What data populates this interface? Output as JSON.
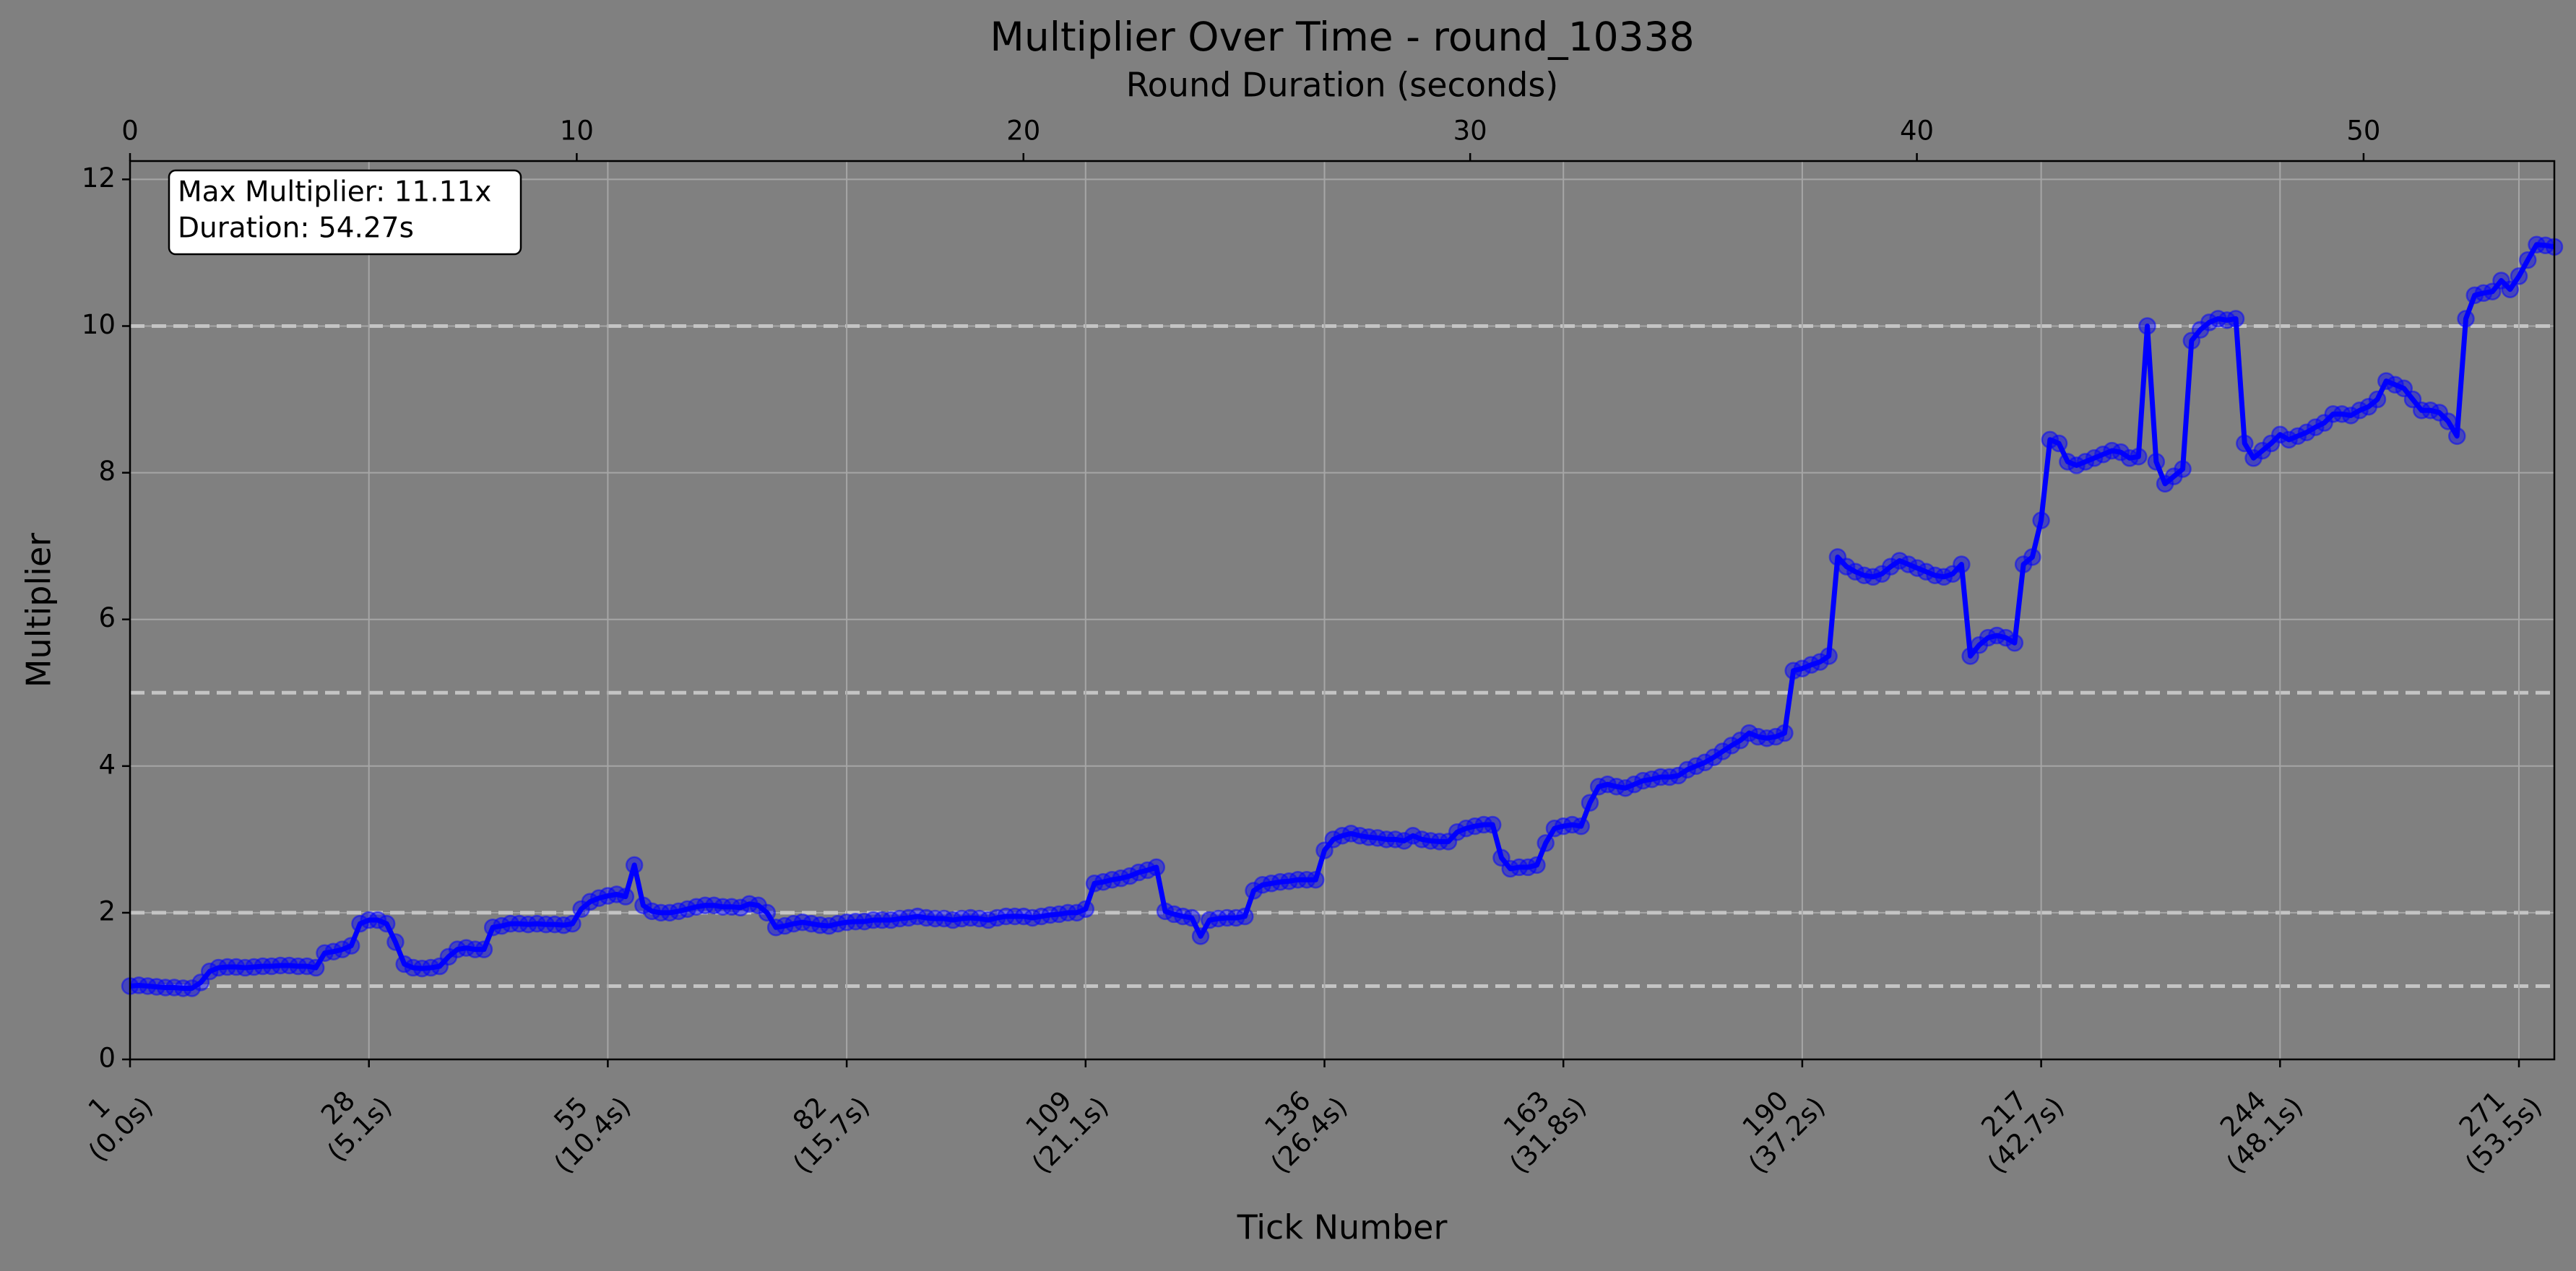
{
  "chart_data": {
    "type": "line",
    "title": "Multiplier Over Time - round_10338",
    "x_label": "Tick Number",
    "y_label": "Multiplier",
    "x2_label": "Round Duration (seconds)",
    "annotation": [
      "Max Multiplier: 11.11x",
      "Duration: 54.27s"
    ],
    "xlim": [
      1,
      275
    ],
    "ylim": [
      0,
      12.25
    ],
    "x2lim": [
      0,
      54.27
    ],
    "xticks": [
      {
        "value": 1,
        "label": [
          "1",
          "(0.0s)"
        ]
      },
      {
        "value": 28,
        "label": [
          "28",
          "(5.1s)"
        ]
      },
      {
        "value": 55,
        "label": [
          "55",
          "(10.4s)"
        ]
      },
      {
        "value": 82,
        "label": [
          "82",
          "(15.7s)"
        ]
      },
      {
        "value": 109,
        "label": [
          "109",
          "(21.1s)"
        ]
      },
      {
        "value": 136,
        "label": [
          "136",
          "(26.4s)"
        ]
      },
      {
        "value": 163,
        "label": [
          "163",
          "(31.8s)"
        ]
      },
      {
        "value": 190,
        "label": [
          "190",
          "(37.2s)"
        ]
      },
      {
        "value": 217,
        "label": [
          "217",
          "(42.7s)"
        ]
      },
      {
        "value": 244,
        "label": [
          "244",
          "(48.1s)"
        ]
      },
      {
        "value": 271,
        "label": [
          "271",
          "(53.5s)"
        ]
      }
    ],
    "yticks": [
      0,
      2,
      4,
      6,
      8,
      10,
      12
    ],
    "x2ticks": [
      0,
      10,
      20,
      30,
      40,
      50
    ],
    "grid": true,
    "reference_lines": [
      1,
      2,
      5,
      10
    ],
    "series": [
      {
        "name": "Multiplier",
        "color": "#0000ff",
        "x": [
          1,
          2,
          3,
          4,
          5,
          6,
          7,
          8,
          9,
          10,
          11,
          12,
          13,
          14,
          15,
          16,
          17,
          18,
          19,
          20,
          21,
          22,
          23,
          24,
          25,
          26,
          27,
          28,
          29,
          30,
          31,
          32,
          33,
          34,
          35,
          36,
          37,
          38,
          39,
          40,
          41,
          42,
          43,
          44,
          45,
          46,
          47,
          48,
          49,
          50,
          51,
          52,
          53,
          54,
          55,
          56,
          57,
          58,
          59,
          60,
          61,
          62,
          63,
          64,
          65,
          66,
          67,
          68,
          69,
          70,
          71,
          72,
          73,
          74,
          75,
          76,
          77,
          78,
          79,
          80,
          81,
          82,
          83,
          84,
          85,
          86,
          87,
          88,
          89,
          90,
          91,
          92,
          93,
          94,
          95,
          96,
          97,
          98,
          99,
          100,
          101,
          102,
          103,
          104,
          105,
          106,
          107,
          108,
          109,
          110,
          111,
          112,
          113,
          114,
          115,
          116,
          117,
          118,
          119,
          120,
          121,
          122,
          123,
          124,
          125,
          126,
          127,
          128,
          129,
          130,
          131,
          132,
          133,
          134,
          135,
          136,
          137,
          138,
          139,
          140,
          141,
          142,
          143,
          144,
          145,
          146,
          147,
          148,
          149,
          150,
          151,
          152,
          153,
          154,
          155,
          156,
          157,
          158,
          159,
          160,
          161,
          162,
          163,
          164,
          165,
          166,
          167,
          168,
          169,
          170,
          171,
          172,
          173,
          174,
          175,
          176,
          177,
          178,
          179,
          180,
          181,
          182,
          183,
          184,
          185,
          186,
          187,
          188,
          189,
          190,
          191,
          192,
          193,
          194,
          195,
          196,
          197,
          198,
          199,
          200,
          201,
          202,
          203,
          204,
          205,
          206,
          207,
          208,
          209,
          210,
          211,
          212,
          213,
          214,
          215,
          216,
          217,
          218,
          219,
          220,
          221,
          222,
          223,
          224,
          225,
          226,
          227,
          228,
          229,
          230,
          231,
          232,
          233,
          234,
          235,
          236,
          237,
          238,
          239,
          240,
          241,
          242,
          243,
          244,
          245,
          246,
          247,
          248,
          249,
          250,
          251,
          252,
          253,
          254,
          255,
          256,
          257,
          258,
          259,
          260,
          261,
          262,
          263,
          264,
          265,
          266,
          267,
          268,
          269,
          270,
          271,
          272,
          273,
          274,
          275
        ],
        "values": [
          1.0,
          1.01,
          1.0,
          0.99,
          0.98,
          0.98,
          0.97,
          0.97,
          1.05,
          1.2,
          1.25,
          1.26,
          1.26,
          1.25,
          1.26,
          1.27,
          1.27,
          1.28,
          1.28,
          1.27,
          1.27,
          1.25,
          1.45,
          1.47,
          1.5,
          1.55,
          1.85,
          1.9,
          1.9,
          1.85,
          1.6,
          1.3,
          1.25,
          1.24,
          1.25,
          1.27,
          1.4,
          1.5,
          1.52,
          1.5,
          1.5,
          1.8,
          1.82,
          1.85,
          1.85,
          1.84,
          1.85,
          1.84,
          1.84,
          1.83,
          1.85,
          2.05,
          2.15,
          2.2,
          2.23,
          2.25,
          2.22,
          2.65,
          2.1,
          2.02,
          2.0,
          2.0,
          2.02,
          2.05,
          2.08,
          2.1,
          2.1,
          2.08,
          2.08,
          2.07,
          2.12,
          2.1,
          2.0,
          1.8,
          1.82,
          1.85,
          1.87,
          1.85,
          1.83,
          1.82,
          1.85,
          1.87,
          1.88,
          1.88,
          1.9,
          1.9,
          1.9,
          1.92,
          1.93,
          1.95,
          1.93,
          1.92,
          1.92,
          1.9,
          1.92,
          1.93,
          1.92,
          1.9,
          1.93,
          1.95,
          1.95,
          1.95,
          1.93,
          1.95,
          1.97,
          1.98,
          2.0,
          2.0,
          2.05,
          2.4,
          2.42,
          2.45,
          2.47,
          2.5,
          2.55,
          2.58,
          2.62,
          2.02,
          1.98,
          1.95,
          1.93,
          1.68,
          1.9,
          1.92,
          1.93,
          1.93,
          1.95,
          2.3,
          2.38,
          2.4,
          2.42,
          2.43,
          2.45,
          2.45,
          2.45,
          2.85,
          3.0,
          3.05,
          3.08,
          3.05,
          3.03,
          3.02,
          3.0,
          3.0,
          2.98,
          3.05,
          3.0,
          2.98,
          2.97,
          2.97,
          3.1,
          3.15,
          3.18,
          3.2,
          3.2,
          2.75,
          2.6,
          2.62,
          2.62,
          2.65,
          2.95,
          3.15,
          3.18,
          3.2,
          3.18,
          3.5,
          3.72,
          3.75,
          3.72,
          3.7,
          3.75,
          3.8,
          3.82,
          3.85,
          3.85,
          3.87,
          3.95,
          4.0,
          4.05,
          4.12,
          4.2,
          4.28,
          4.35,
          4.45,
          4.4,
          4.38,
          4.4,
          4.45,
          5.3,
          5.33,
          5.38,
          5.42,
          5.5,
          6.85,
          6.72,
          6.65,
          6.6,
          6.58,
          6.62,
          6.72,
          6.8,
          6.75,
          6.7,
          6.65,
          6.6,
          6.58,
          6.62,
          6.75,
          5.5,
          5.65,
          5.75,
          5.78,
          5.75,
          5.68,
          6.75,
          6.85,
          7.35,
          8.45,
          8.4,
          8.15,
          8.1,
          8.15,
          8.2,
          8.25,
          8.3,
          8.28,
          8.2,
          8.22,
          10.0,
          8.15,
          7.85,
          7.95,
          8.05,
          9.8,
          9.95,
          10.05,
          10.1,
          10.08,
          10.1,
          8.4,
          8.2,
          8.3,
          8.4,
          8.52,
          8.45,
          8.5,
          8.55,
          8.62,
          8.68,
          8.8,
          8.8,
          8.78,
          8.85,
          8.9,
          9.0,
          9.25,
          9.2,
          9.15,
          9.0,
          8.85,
          8.85,
          8.82,
          8.7,
          8.5,
          10.1,
          10.42,
          10.45,
          10.47,
          10.62,
          10.5,
          10.68,
          10.9,
          11.11,
          11.1,
          11.08
        ]
      }
    ]
  }
}
